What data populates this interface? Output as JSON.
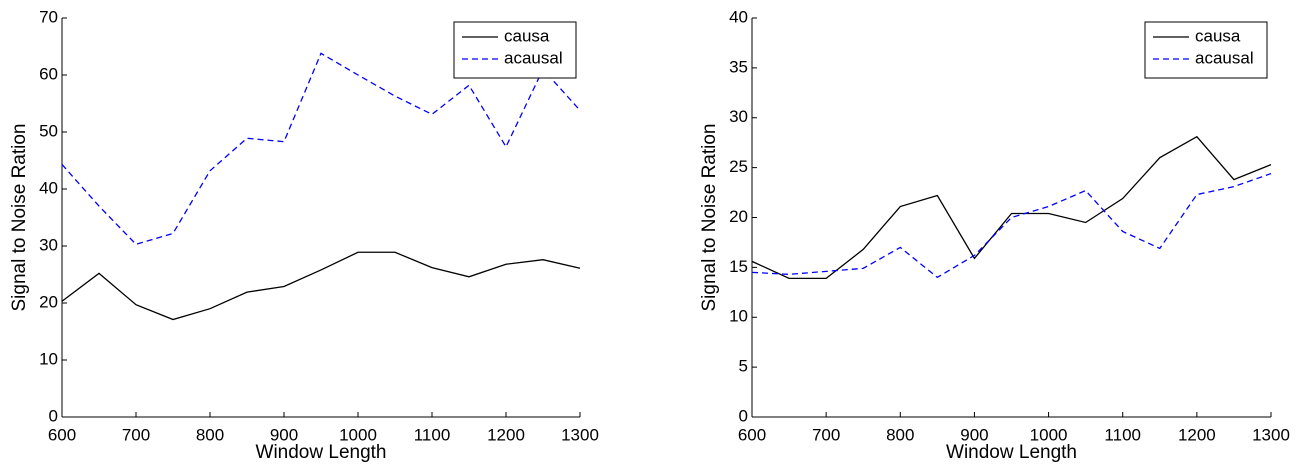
{
  "chart_data": [
    {
      "type": "line",
      "xlabel": "Window Length",
      "ylabel": "Signal to Noise Ration",
      "x": [
        600,
        650,
        700,
        750,
        800,
        850,
        900,
        950,
        1000,
        1050,
        1100,
        1150,
        1200,
        1250,
        1300
      ],
      "series": [
        {
          "name": "causa",
          "color": "#000000",
          "dash": "solid",
          "values": [
            20.3,
            25.2,
            19.7,
            17.1,
            19.0,
            21.9,
            22.9,
            25.8,
            28.9,
            28.9,
            26.2,
            24.6,
            26.8,
            27.6,
            26.1
          ]
        },
        {
          "name": "acausal",
          "color": "#0000ff",
          "dash": "dashed",
          "values": [
            44.3,
            37.0,
            30.3,
            32.2,
            43.2,
            48.9,
            48.3,
            63.8,
            60.0,
            56.3,
            53.1,
            58.2,
            47.4,
            61.0,
            53.8
          ]
        }
      ],
      "xlim": [
        600,
        1300
      ],
      "xticks": [
        600,
        700,
        800,
        900,
        1000,
        1100,
        1200,
        1300
      ],
      "ylim": [
        0,
        70
      ],
      "yticks": [
        0,
        10,
        20,
        30,
        40,
        50,
        60,
        70
      ],
      "legend": "upper right"
    },
    {
      "type": "line",
      "xlabel": "Window Length",
      "ylabel": "Signal to Noise Ration",
      "x": [
        600,
        650,
        700,
        750,
        800,
        850,
        900,
        950,
        1000,
        1050,
        1100,
        1150,
        1200,
        1250,
        1300
      ],
      "series": [
        {
          "name": "causa",
          "color": "#000000",
          "dash": "solid",
          "values": [
            15.6,
            13.9,
            13.9,
            16.8,
            21.1,
            22.2,
            15.9,
            20.4,
            20.4,
            19.5,
            21.9,
            26.0,
            28.1,
            23.8,
            25.3
          ]
        },
        {
          "name": "acausal",
          "color": "#0000ff",
          "dash": "dashed",
          "values": [
            14.5,
            14.3,
            14.6,
            14.9,
            17.0,
            14.0,
            16.2,
            20.0,
            21.1,
            22.7,
            18.6,
            16.9,
            22.3,
            23.1,
            24.4
          ]
        }
      ],
      "xlim": [
        600,
        1300
      ],
      "xticks": [
        600,
        700,
        800,
        900,
        1000,
        1100,
        1200,
        1300
      ],
      "ylim": [
        0,
        40
      ],
      "yticks": [
        0,
        5,
        10,
        15,
        20,
        25,
        30,
        35,
        40
      ],
      "legend": "upper right"
    }
  ]
}
